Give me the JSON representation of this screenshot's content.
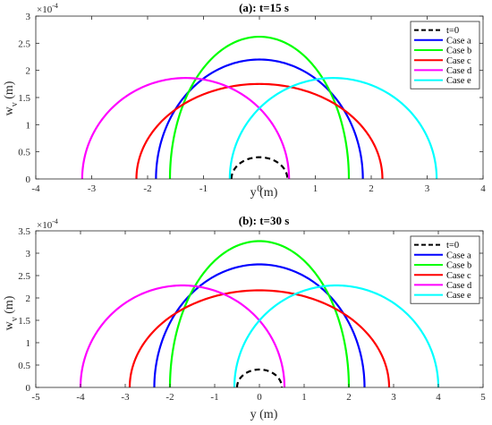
{
  "chart_data": [
    {
      "type": "line",
      "title": "(a): t=15 s",
      "xlabel": "y (m)",
      "ylabel": "w",
      "ylabel_sub": "v",
      "ylabel_unit": "(m)",
      "y_exponent": "×10",
      "y_exponent_power": "-4",
      "xlim": [
        -4,
        4
      ],
      "ylim": [
        0,
        3
      ],
      "xticks": [
        -4,
        -3,
        -2,
        -1,
        0,
        1,
        2,
        3,
        4
      ],
      "yticks": [
        0,
        0.5,
        1,
        1.5,
        2,
        2.5,
        3
      ],
      "legend_position": "top-right",
      "series": [
        {
          "name": "t=0",
          "color": "#000000",
          "dash": true,
          "center": 0,
          "half_width": 0.5,
          "peak": 0.4
        },
        {
          "name": "Case a",
          "color": "#0000ff",
          "dash": false,
          "center": 0,
          "half_width": 1.85,
          "peak": 2.2
        },
        {
          "name": "Case b",
          "color": "#00ff00",
          "dash": false,
          "center": 0,
          "half_width": 1.6,
          "peak": 2.62
        },
        {
          "name": "Case c",
          "color": "#ff0000",
          "dash": false,
          "center": 0,
          "half_width": 2.2,
          "peak": 1.75
        },
        {
          "name": "Case d",
          "color": "#ff00ff",
          "dash": false,
          "center": -1.32,
          "half_width": 1.85,
          "peak": 1.86
        },
        {
          "name": "Case e",
          "color": "#00ffff",
          "dash": false,
          "center": 1.32,
          "half_width": 1.85,
          "peak": 1.86
        }
      ]
    },
    {
      "type": "line",
      "title": "(b): t=30 s",
      "xlabel": "y (m)",
      "ylabel": "w",
      "ylabel_sub": "v",
      "ylabel_unit": "(m)",
      "y_exponent": "×10",
      "y_exponent_power": "-4",
      "xlim": [
        -5,
        5
      ],
      "ylim": [
        0,
        3.5
      ],
      "xticks": [
        -5,
        -4,
        -3,
        -2,
        -1,
        0,
        1,
        2,
        3,
        4,
        5
      ],
      "yticks": [
        0,
        0.5,
        1,
        1.5,
        2,
        2.5,
        3,
        3.5
      ],
      "legend_position": "top-right",
      "series": [
        {
          "name": "t=0",
          "color": "#000000",
          "dash": true,
          "center": 0,
          "half_width": 0.5,
          "peak": 0.4
        },
        {
          "name": "Case a",
          "color": "#0000ff",
          "dash": false,
          "center": 0,
          "half_width": 2.35,
          "peak": 2.75
        },
        {
          "name": "Case b",
          "color": "#00ff00",
          "dash": false,
          "center": 0,
          "half_width": 2.0,
          "peak": 3.27
        },
        {
          "name": "Case c",
          "color": "#ff0000",
          "dash": false,
          "center": 0,
          "half_width": 2.9,
          "peak": 2.17
        },
        {
          "name": "Case d",
          "color": "#ff00ff",
          "dash": false,
          "center": -1.72,
          "half_width": 2.28,
          "peak": 2.28
        },
        {
          "name": "Case e",
          "color": "#00ffff",
          "dash": false,
          "center": 1.72,
          "half_width": 2.28,
          "peak": 2.28
        }
      ]
    }
  ]
}
